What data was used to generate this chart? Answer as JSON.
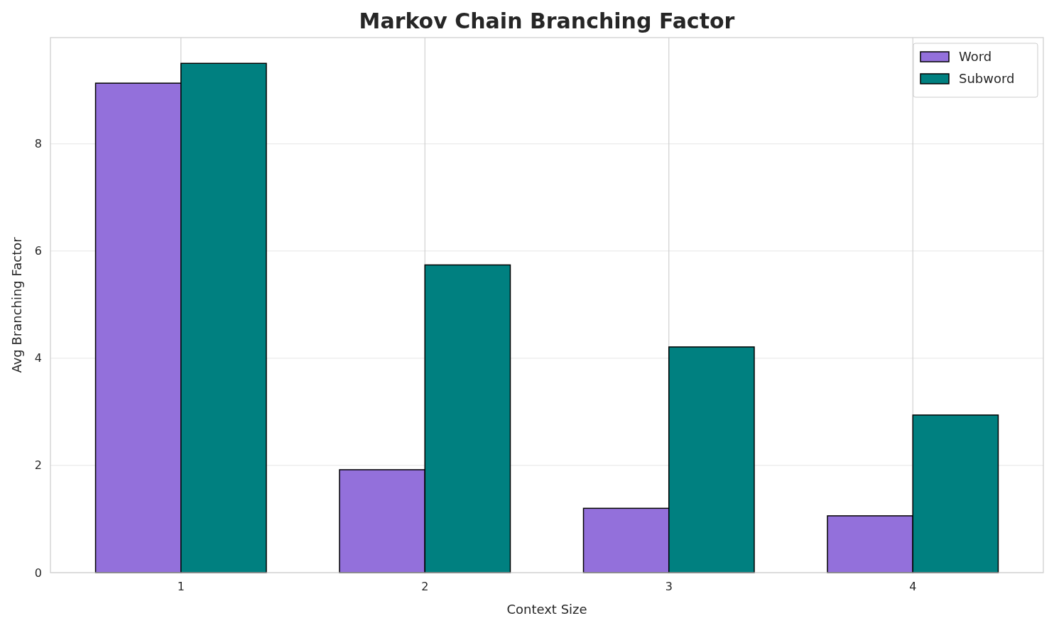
{
  "chart_data": {
    "type": "bar",
    "title": "Markov Chain Branching Factor",
    "xlabel": "Context Size",
    "ylabel": "Avg Branching Factor",
    "categories": [
      "1",
      "2",
      "3",
      "4"
    ],
    "series": [
      {
        "name": "Word",
        "color": "#9370db",
        "values": [
          9.13,
          1.92,
          1.2,
          1.06
        ]
      },
      {
        "name": "Subword",
        "color": "#008080",
        "values": [
          9.5,
          5.74,
          4.21,
          2.94
        ]
      }
    ],
    "ylim": [
      0,
      9.98
    ],
    "yticks": [
      0,
      2,
      4,
      6,
      8
    ],
    "grid": true,
    "legend": "top right"
  }
}
